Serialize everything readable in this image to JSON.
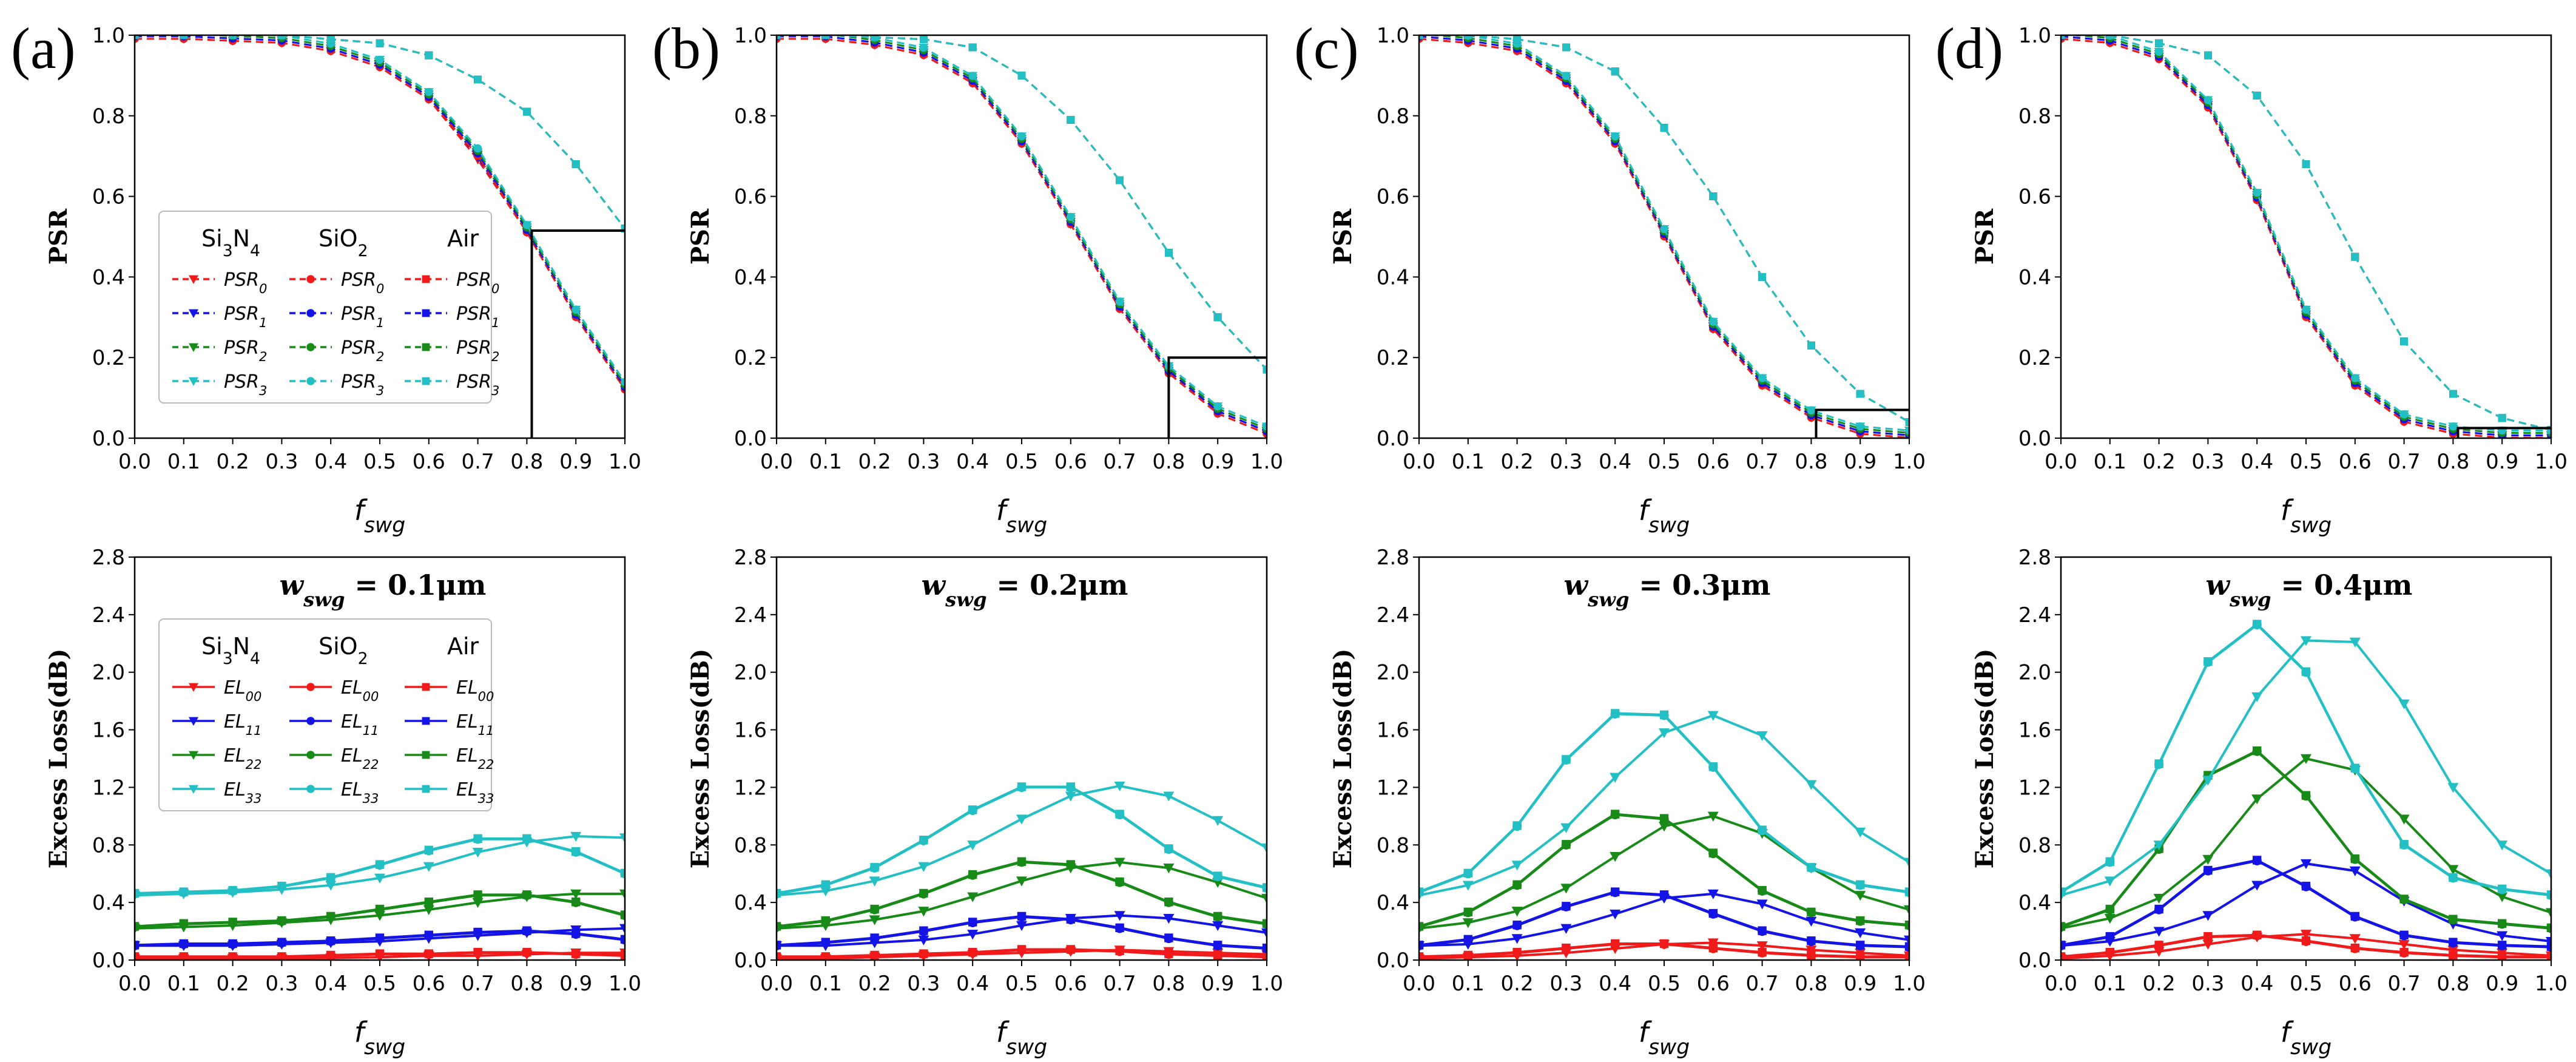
{
  "figure": {
    "panel_labels": [
      "(a)",
      "(b)",
      "(c)",
      "(d)"
    ],
    "colors": {
      "EL00": "#f01a1a",
      "EL11": "#1414e6",
      "EL22": "#188a18",
      "EL33": "#22c0c4"
    }
  },
  "legend_psr": {
    "headers": [
      "Si3N4",
      "SiO2",
      "Air"
    ],
    "rows": [
      "PSR0",
      "PSR1",
      "PSR2",
      "PSR3"
    ],
    "markers": [
      "triangle-down",
      "circle",
      "square"
    ],
    "line_style": "dashed"
  },
  "legend_el": {
    "headers": [
      "Si3N4",
      "SiO2",
      "Air"
    ],
    "rows": [
      "EL00",
      "EL11",
      "EL22",
      "EL33"
    ],
    "markers": [
      "triangle-down",
      "circle",
      "square"
    ],
    "line_style": "solid"
  },
  "chart_data": [
    {
      "panel": "(a)",
      "type": "line",
      "title": "",
      "xlabel": "f_swg",
      "ylabel": "PSR",
      "xlim": [
        0,
        1
      ],
      "ylim": [
        0,
        1
      ],
      "grid": false,
      "x": [
        0,
        0.1,
        0.2,
        0.3,
        0.4,
        0.5,
        0.6,
        0.7,
        0.8,
        0.9,
        1.0
      ],
      "series": [
        {
          "name": "PSR (Si3N4)",
          "values": [
            1,
            1,
            0.995,
            0.99,
            0.97,
            0.93,
            0.85,
            0.7,
            0.52,
            0.31,
            0.13
          ]
        },
        {
          "name": "PSR (SiO2)",
          "values": [
            1,
            1,
            0.995,
            0.99,
            0.97,
            0.93,
            0.85,
            0.71,
            0.52,
            0.31,
            0.13
          ]
        },
        {
          "name": "PSR (Air)",
          "values": [
            1,
            1,
            1,
            1,
            0.99,
            0.98,
            0.95,
            0.89,
            0.81,
            0.68,
            0.52
          ]
        }
      ],
      "annotations": {
        "box_x": 0.81,
        "box_y": 0.515
      }
    },
    {
      "panel": "(b)",
      "type": "line",
      "title": "",
      "xlabel": "f_swg",
      "ylabel": "PSR",
      "xlim": [
        0,
        1
      ],
      "ylim": [
        0,
        1
      ],
      "grid": false,
      "x": [
        0,
        0.1,
        0.2,
        0.3,
        0.4,
        0.5,
        0.6,
        0.7,
        0.8,
        0.9,
        1.0
      ],
      "series": [
        {
          "name": "PSR (Si3N4)",
          "values": [
            1,
            1,
            0.985,
            0.96,
            0.89,
            0.74,
            0.54,
            0.33,
            0.17,
            0.07,
            0.02
          ]
        },
        {
          "name": "PSR (SiO2)",
          "values": [
            1,
            1,
            0.985,
            0.96,
            0.89,
            0.74,
            0.54,
            0.33,
            0.17,
            0.07,
            0.02
          ]
        },
        {
          "name": "PSR (Air)",
          "values": [
            1,
            1,
            0.995,
            0.99,
            0.97,
            0.9,
            0.79,
            0.64,
            0.46,
            0.3,
            0.17
          ]
        }
      ],
      "annotations": {
        "box_x": 0.8,
        "box_y": 0.2
      }
    },
    {
      "panel": "(c)",
      "type": "line",
      "title": "",
      "xlabel": "f_swg",
      "ylabel": "PSR",
      "xlim": [
        0,
        1
      ],
      "ylim": [
        0,
        1
      ],
      "grid": false,
      "x": [
        0,
        0.1,
        0.2,
        0.3,
        0.4,
        0.5,
        0.6,
        0.7,
        0.8,
        0.9,
        1.0
      ],
      "series": [
        {
          "name": "PSR (Si3N4)",
          "values": [
            1,
            0.99,
            0.97,
            0.89,
            0.74,
            0.51,
            0.28,
            0.14,
            0.06,
            0.02,
            0.01
          ]
        },
        {
          "name": "PSR (SiO2)",
          "values": [
            1,
            0.99,
            0.97,
            0.89,
            0.74,
            0.51,
            0.28,
            0.14,
            0.06,
            0.02,
            0.01
          ]
        },
        {
          "name": "PSR (Air)",
          "values": [
            1,
            1,
            0.99,
            0.97,
            0.91,
            0.77,
            0.6,
            0.4,
            0.23,
            0.11,
            0.04
          ]
        }
      ],
      "annotations": {
        "box_x": 0.81,
        "box_y": 0.07
      }
    },
    {
      "panel": "(d)",
      "type": "line",
      "title": "",
      "xlabel": "f_swg",
      "ylabel": "PSR",
      "xlim": [
        0,
        1
      ],
      "ylim": [
        0,
        1
      ],
      "grid": false,
      "x": [
        0,
        0.1,
        0.2,
        0.3,
        0.4,
        0.5,
        0.6,
        0.7,
        0.8,
        0.9,
        1.0
      ],
      "series": [
        {
          "name": "PSR (Si3N4)",
          "values": [
            1,
            0.99,
            0.95,
            0.83,
            0.6,
            0.31,
            0.14,
            0.05,
            0.02,
            0.01,
            0.01
          ]
        },
        {
          "name": "PSR (SiO2)",
          "values": [
            1,
            0.99,
            0.95,
            0.83,
            0.6,
            0.31,
            0.14,
            0.05,
            0.02,
            0.01,
            0.01
          ]
        },
        {
          "name": "PSR (Air)",
          "values": [
            1,
            1,
            0.98,
            0.95,
            0.85,
            0.68,
            0.45,
            0.24,
            0.11,
            0.05,
            0.02
          ]
        }
      ],
      "annotations": {
        "box_x": 0.81,
        "box_y": 0.025
      }
    },
    {
      "panel": "(a) bottom",
      "type": "line",
      "title": "w_swg = 0.1μm",
      "xlabel": "f_swg",
      "ylabel": "Excess Loss(dB)",
      "xlim": [
        0,
        1
      ],
      "ylim": [
        0,
        2.8
      ],
      "grid": false,
      "x": [
        0,
        0.1,
        0.2,
        0.3,
        0.4,
        0.5,
        0.6,
        0.7,
        0.8,
        0.9,
        1.0
      ],
      "series": [
        {
          "name": "EL00 (Si3N4)",
          "values": [
            0.01,
            0.01,
            0.01,
            0.01,
            0.015,
            0.02,
            0.03,
            0.03,
            0.04,
            0.05,
            0.05
          ]
        },
        {
          "name": "EL00 (SiO2)",
          "values": [
            0.02,
            0.02,
            0.02,
            0.02,
            0.03,
            0.04,
            0.04,
            0.05,
            0.05,
            0.04,
            0.03
          ]
        },
        {
          "name": "EL11 (Si3N4)",
          "values": [
            0.1,
            0.1,
            0.1,
            0.11,
            0.12,
            0.13,
            0.15,
            0.17,
            0.19,
            0.21,
            0.22
          ]
        },
        {
          "name": "EL11 (SiO2)",
          "values": [
            0.1,
            0.11,
            0.11,
            0.12,
            0.13,
            0.15,
            0.17,
            0.19,
            0.2,
            0.18,
            0.14
          ]
        },
        {
          "name": "EL22 (Si3N4)",
          "values": [
            0.22,
            0.23,
            0.24,
            0.26,
            0.28,
            0.31,
            0.35,
            0.4,
            0.44,
            0.46,
            0.46
          ]
        },
        {
          "name": "EL22 (SiO2)",
          "values": [
            0.23,
            0.25,
            0.26,
            0.27,
            0.3,
            0.35,
            0.4,
            0.45,
            0.45,
            0.4,
            0.31
          ]
        },
        {
          "name": "EL33 (Si3N4)",
          "values": [
            0.45,
            0.46,
            0.47,
            0.49,
            0.52,
            0.57,
            0.65,
            0.75,
            0.82,
            0.86,
            0.85
          ]
        },
        {
          "name": "EL33 (SiO2)",
          "values": [
            0.46,
            0.47,
            0.48,
            0.51,
            0.57,
            0.66,
            0.76,
            0.84,
            0.84,
            0.75,
            0.6
          ]
        }
      ]
    },
    {
      "panel": "(b) bottom",
      "type": "line",
      "title": "w_swg = 0.2μm",
      "xlabel": "f_swg",
      "ylabel": "Excess Loss(dB)",
      "xlim": [
        0,
        1
      ],
      "ylim": [
        0,
        2.8
      ],
      "grid": false,
      "x": [
        0,
        0.1,
        0.2,
        0.3,
        0.4,
        0.5,
        0.6,
        0.7,
        0.8,
        0.9,
        1.0
      ],
      "series": [
        {
          "name": "EL00 (Si3N4)",
          "values": [
            0.01,
            0.01,
            0.02,
            0.03,
            0.04,
            0.05,
            0.06,
            0.07,
            0.06,
            0.05,
            0.04
          ]
        },
        {
          "name": "EL00 (SiO2)",
          "values": [
            0.02,
            0.02,
            0.03,
            0.04,
            0.05,
            0.07,
            0.07,
            0.06,
            0.04,
            0.03,
            0.02
          ]
        },
        {
          "name": "EL11 (Si3N4)",
          "values": [
            0.1,
            0.1,
            0.12,
            0.14,
            0.18,
            0.24,
            0.29,
            0.31,
            0.29,
            0.24,
            0.19
          ]
        },
        {
          "name": "EL11 (SiO2)",
          "values": [
            0.1,
            0.12,
            0.15,
            0.2,
            0.26,
            0.3,
            0.28,
            0.22,
            0.15,
            0.1,
            0.08
          ]
        },
        {
          "name": "EL22 (Si3N4)",
          "values": [
            0.22,
            0.24,
            0.28,
            0.34,
            0.44,
            0.55,
            0.64,
            0.68,
            0.64,
            0.54,
            0.43
          ]
        },
        {
          "name": "EL22 (SiO2)",
          "values": [
            0.23,
            0.27,
            0.35,
            0.46,
            0.59,
            0.68,
            0.66,
            0.54,
            0.4,
            0.3,
            0.25
          ]
        },
        {
          "name": "EL33 (Si3N4)",
          "values": [
            0.45,
            0.48,
            0.55,
            0.65,
            0.8,
            0.98,
            1.14,
            1.21,
            1.14,
            0.97,
            0.78
          ]
        },
        {
          "name": "EL33 (SiO2)",
          "values": [
            0.46,
            0.52,
            0.64,
            0.83,
            1.04,
            1.2,
            1.2,
            1.01,
            0.77,
            0.58,
            0.5
          ]
        }
      ]
    },
    {
      "panel": "(c) bottom",
      "type": "line",
      "title": "w_swg = 0.3μm",
      "xlabel": "f_swg",
      "ylabel": "Excess Loss(dB)",
      "xlim": [
        0,
        1
      ],
      "ylim": [
        0,
        2.8
      ],
      "grid": false,
      "x": [
        0,
        0.1,
        0.2,
        0.3,
        0.4,
        0.5,
        0.6,
        0.7,
        0.8,
        0.9,
        1.0
      ],
      "series": [
        {
          "name": "EL00 (Si3N4)",
          "values": [
            0.01,
            0.02,
            0.03,
            0.05,
            0.08,
            0.11,
            0.12,
            0.1,
            0.07,
            0.05,
            0.03
          ]
        },
        {
          "name": "EL00 (SiO2)",
          "values": [
            0.02,
            0.03,
            0.05,
            0.08,
            0.11,
            0.11,
            0.08,
            0.05,
            0.03,
            0.02,
            0.02
          ]
        },
        {
          "name": "EL11 (Si3N4)",
          "values": [
            0.1,
            0.11,
            0.15,
            0.22,
            0.32,
            0.43,
            0.46,
            0.39,
            0.27,
            0.19,
            0.14
          ]
        },
        {
          "name": "EL11 (SiO2)",
          "values": [
            0.1,
            0.14,
            0.24,
            0.37,
            0.47,
            0.45,
            0.32,
            0.2,
            0.13,
            0.1,
            0.09
          ]
        },
        {
          "name": "EL22 (Si3N4)",
          "values": [
            0.22,
            0.26,
            0.34,
            0.5,
            0.72,
            0.93,
            1.0,
            0.88,
            0.64,
            0.45,
            0.35
          ]
        },
        {
          "name": "EL22 (SiO2)",
          "values": [
            0.23,
            0.33,
            0.52,
            0.8,
            1.01,
            0.98,
            0.74,
            0.48,
            0.33,
            0.27,
            0.24
          ]
        },
        {
          "name": "EL33 (Si3N4)",
          "values": [
            0.45,
            0.52,
            0.66,
            0.92,
            1.27,
            1.58,
            1.7,
            1.56,
            1.22,
            0.89,
            0.68
          ]
        },
        {
          "name": "EL33 (SiO2)",
          "values": [
            0.47,
            0.6,
            0.93,
            1.39,
            1.71,
            1.7,
            1.34,
            0.9,
            0.64,
            0.52,
            0.47
          ]
        }
      ]
    },
    {
      "panel": "(d) bottom",
      "type": "line",
      "title": "w_swg = 0.4μm",
      "xlabel": "f_swg",
      "ylabel": "Excess Loss(dB)",
      "xlim": [
        0,
        1
      ],
      "ylim": [
        0,
        2.8
      ],
      "grid": false,
      "x": [
        0,
        0.1,
        0.2,
        0.3,
        0.4,
        0.5,
        0.6,
        0.7,
        0.8,
        0.9,
        1.0
      ],
      "series": [
        {
          "name": "EL00 (Si3N4)",
          "values": [
            0.01,
            0.03,
            0.06,
            0.11,
            0.16,
            0.18,
            0.15,
            0.11,
            0.07,
            0.05,
            0.03
          ]
        },
        {
          "name": "EL00 (SiO2)",
          "values": [
            0.02,
            0.05,
            0.1,
            0.16,
            0.17,
            0.13,
            0.08,
            0.05,
            0.03,
            0.02,
            0.02
          ]
        },
        {
          "name": "EL11 (Si3N4)",
          "values": [
            0.1,
            0.13,
            0.2,
            0.31,
            0.52,
            0.67,
            0.62,
            0.41,
            0.25,
            0.17,
            0.13
          ]
        },
        {
          "name": "EL11 (SiO2)",
          "values": [
            0.1,
            0.16,
            0.35,
            0.62,
            0.69,
            0.51,
            0.3,
            0.17,
            0.12,
            0.1,
            0.09
          ]
        },
        {
          "name": "EL22 (Si3N4)",
          "values": [
            0.22,
            0.29,
            0.43,
            0.7,
            1.12,
            1.4,
            1.32,
            0.98,
            0.63,
            0.44,
            0.33
          ]
        },
        {
          "name": "EL22 (SiO2)",
          "values": [
            0.23,
            0.35,
            0.77,
            1.28,
            1.45,
            1.14,
            0.7,
            0.42,
            0.28,
            0.25,
            0.22
          ]
        },
        {
          "name": "EL33 (Si3N4)",
          "values": [
            0.45,
            0.55,
            0.8,
            1.25,
            1.83,
            2.22,
            2.21,
            1.78,
            1.2,
            0.8,
            0.6
          ]
        },
        {
          "name": "EL33 (SiO2)",
          "values": [
            0.47,
            0.68,
            1.36,
            2.07,
            2.33,
            2.0,
            1.33,
            0.8,
            0.57,
            0.49,
            0.45
          ]
        }
      ]
    }
  ]
}
